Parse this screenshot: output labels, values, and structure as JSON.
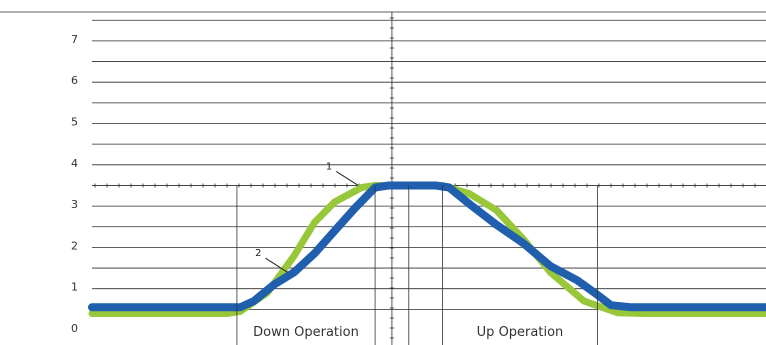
{
  "chart_data": {
    "type": "line",
    "title": "",
    "xlabel": "",
    "ylabel": "",
    "ylim": [
      0,
      7.7
    ],
    "y_ticks": [
      "0",
      "1",
      "2",
      "3",
      "4",
      "5",
      "6",
      "7"
    ],
    "xlim": [
      0,
      10
    ],
    "grid": true,
    "series": [
      {
        "color": "#98c73a",
        "points": [
          [
            0.0,
            0.4
          ],
          [
            2.0,
            0.4
          ],
          [
            2.2,
            0.45
          ],
          [
            2.6,
            0.9
          ],
          [
            3.0,
            1.8
          ],
          [
            3.3,
            2.6
          ],
          [
            3.6,
            3.1
          ],
          [
            4.0,
            3.45
          ],
          [
            4.2,
            3.5
          ],
          [
            5.2,
            3.5
          ],
          [
            5.6,
            3.3
          ],
          [
            6.0,
            2.9
          ],
          [
            6.4,
            2.2
          ],
          [
            6.8,
            1.4
          ],
          [
            7.3,
            0.7
          ],
          [
            7.8,
            0.42
          ],
          [
            8.2,
            0.4
          ],
          [
            10.0,
            0.4
          ]
        ]
      },
      {
        "color": "#1f5fae",
        "points": [
          [
            0.0,
            0.55
          ],
          [
            2.2,
            0.55
          ],
          [
            2.4,
            0.7
          ],
          [
            2.7,
            1.1
          ],
          [
            3.0,
            1.4
          ],
          [
            3.3,
            1.85
          ],
          [
            3.6,
            2.4
          ],
          [
            3.9,
            2.95
          ],
          [
            4.2,
            3.45
          ],
          [
            4.4,
            3.5
          ],
          [
            5.1,
            3.5
          ],
          [
            5.3,
            3.45
          ],
          [
            5.6,
            3.05
          ],
          [
            6.0,
            2.55
          ],
          [
            6.4,
            2.1
          ],
          [
            6.8,
            1.55
          ],
          [
            7.2,
            1.2
          ],
          [
            7.5,
            0.85
          ],
          [
            7.7,
            0.6
          ],
          [
            8.0,
            0.55
          ],
          [
            10.0,
            0.55
          ]
        ]
      }
    ],
    "annotations": [
      {
        "label": "1",
        "x": 3.95,
        "y": 3.5
      },
      {
        "label": "2",
        "x": 2.9,
        "y": 1.4
      }
    ],
    "region_labels": [
      {
        "label": "Down Operation",
        "x_start": 2.15,
        "x_end": 4.2
      },
      {
        "label": "Up Operation",
        "x_start": 5.2,
        "x_end": 7.5
      }
    ],
    "reference_marks": [
      4.45,
      4.7
    ]
  }
}
